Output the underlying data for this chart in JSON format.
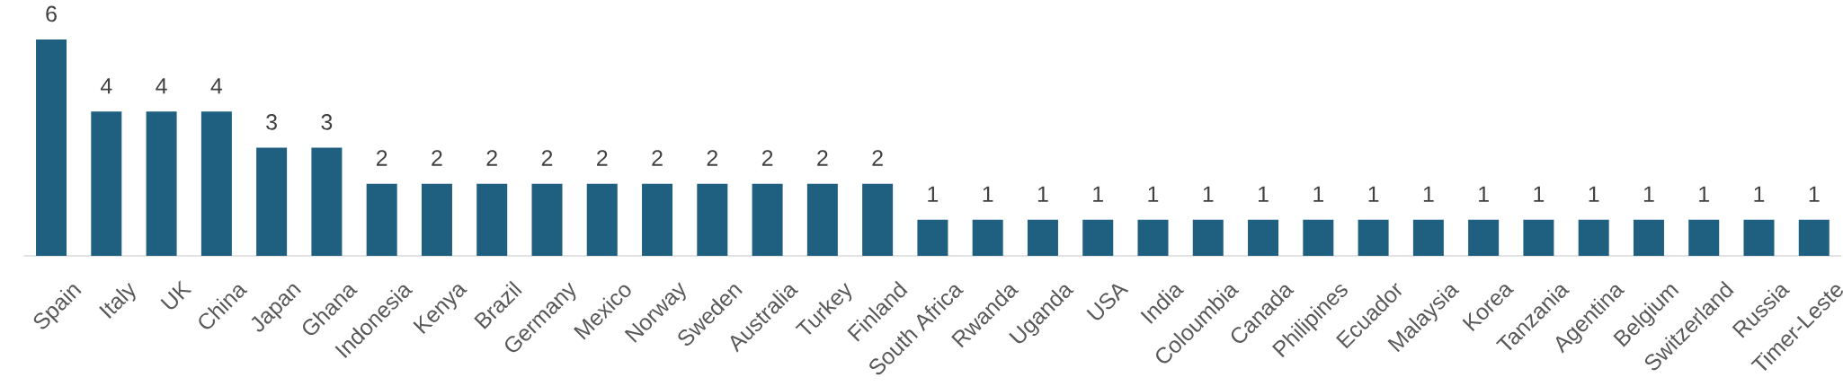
{
  "chart_data": {
    "type": "bar",
    "categories": [
      "Spain",
      "Italy",
      "UK",
      "China",
      "Japan",
      "Ghana",
      "Indonesia",
      "Kenya",
      "Brazil",
      "Germany",
      "Mexico",
      "Norway",
      "Sweden",
      "Australia",
      "Turkey",
      "Finland",
      "South Africa",
      "Rwanda",
      "Uganda",
      "USA",
      "India",
      "Coloumbia",
      "Canada",
      "Philipines",
      "Ecuador",
      "Malaysia",
      "Korea",
      "Tanzania",
      "Agentina",
      "Belgium",
      "Switzerland",
      "Russia",
      "Timer-Leste"
    ],
    "values": [
      6,
      4,
      4,
      4,
      3,
      3,
      2,
      2,
      2,
      2,
      2,
      2,
      2,
      2,
      2,
      2,
      1,
      1,
      1,
      1,
      1,
      1,
      1,
      1,
      1,
      1,
      1,
      1,
      1,
      1,
      1,
      1,
      1
    ],
    "color": "#1f5f80",
    "data_labels": true,
    "tick_labels": "x"
  }
}
